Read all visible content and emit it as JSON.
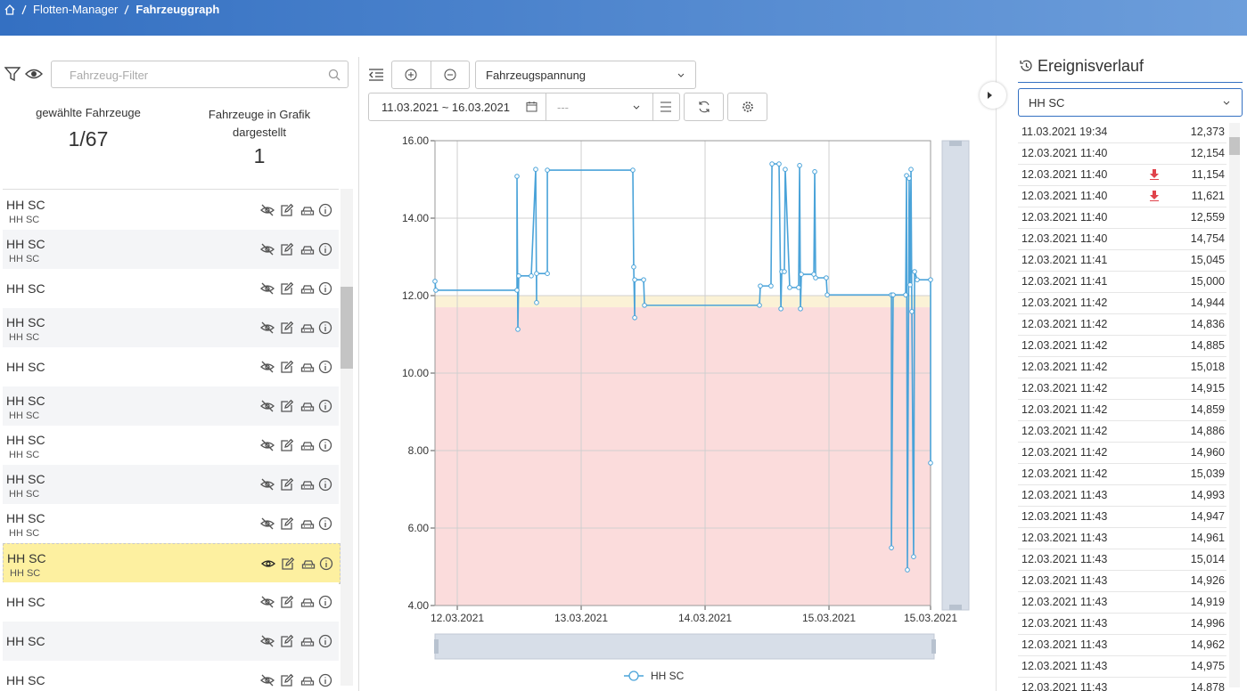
{
  "breadcrumb": [
    "Flotten-Manager",
    "Fahrzeuggraph"
  ],
  "filter": {
    "placeholder": "Fahrzeug-Filter"
  },
  "stats": [
    {
      "label": "gewählte Fahrzeuge",
      "value": "1/67"
    },
    {
      "label": "Fahrzeuge in Grafik dargestellt",
      "value": "1"
    }
  ],
  "vehicles": [
    {
      "name": "HH SC",
      "sub": "HH SC"
    },
    {
      "name": "HH SC",
      "sub": "HH SC"
    },
    {
      "name": "HH SC"
    },
    {
      "name": "HH SC",
      "sub": "HH SC"
    },
    {
      "name": "HH SC"
    },
    {
      "name": "HH SC",
      "sub": "HH SC"
    },
    {
      "name": "HH SC",
      "sub": "HH SC"
    },
    {
      "name": "HH SC",
      "sub": "HH SC"
    },
    {
      "name": "HH SC",
      "sub": "HH SC"
    },
    {
      "name": "HH SC",
      "sub": "HH SC",
      "selected": true
    },
    {
      "name": "HH SC"
    },
    {
      "name": "HH SC"
    },
    {
      "name": "HH SC"
    }
  ],
  "toolbar": {
    "measure": "Fahrzeugspannung",
    "date_range": "11.03.2021 ~ 16.03.2021",
    "option": "---"
  },
  "chart_data": {
    "type": "line",
    "x": [
      -0.18,
      -0.173,
      0.482,
      0.482,
      0.489,
      0.496,
      0.597,
      0.633,
      0.64,
      0.64,
      0.727,
      0.727,
      1.417,
      1.424,
      1.432,
      1.432,
      1.504,
      1.511,
      2.439,
      2.446,
      2.532,
      2.54,
      2.597,
      2.612,
      2.619,
      2.64,
      2.647,
      2.683,
      2.755,
      2.763,
      2.77,
      2.777,
      2.878,
      2.885,
      2.892,
      2.978,
      2.986,
      3.504,
      3.504,
      3.518,
      3.619,
      3.626,
      3.633,
      3.647,
      3.655,
      3.662,
      3.669,
      3.683,
      3.691,
      3.712,
      3.82,
      3.82
    ],
    "series": [
      {
        "name": "HH SC",
        "color": "#4aa3d9",
        "values": [
          12.37,
          12.14,
          12.14,
          15.08,
          11.13,
          12.51,
          12.51,
          15.26,
          11.82,
          12.57,
          12.57,
          15.24,
          15.24,
          12.74,
          11.43,
          12.41,
          12.41,
          11.75,
          11.75,
          12.25,
          12.25,
          15.4,
          15.4,
          11.66,
          12.62,
          12.62,
          15.26,
          12.21,
          12.21,
          15.36,
          11.66,
          12.55,
          12.55,
          15.2,
          12.46,
          12.46,
          12.02,
          12.02,
          5.49,
          12.02,
          12.02,
          15.1,
          4.92,
          15.03,
          12.28,
          15.26,
          11.59,
          5.26,
          12.62,
          12.41,
          12.41,
          7.68
        ]
      }
    ],
    "xlim": [
      -0.18,
      3.82
    ],
    "xticks": [
      {
        "value": 0,
        "label": "12.03.2021"
      },
      {
        "value": 1,
        "label": "13.03.2021"
      },
      {
        "value": 2,
        "label": "14.03.2021"
      },
      {
        "value": 3,
        "label": "15.03.2021"
      },
      {
        "value": 3.82,
        "label": "15.03.2021"
      }
    ],
    "ylim": [
      4,
      16
    ],
    "yticks": [
      {
        "value": 4,
        "label": "4.00"
      },
      {
        "value": 6,
        "label": "6.00"
      },
      {
        "value": 8,
        "label": "8.00"
      },
      {
        "value": 10,
        "label": "10.00"
      },
      {
        "value": 12,
        "label": "12.00"
      },
      {
        "value": 14,
        "label": "14.00"
      },
      {
        "value": 16,
        "label": "16.00"
      }
    ],
    "bands": [
      {
        "from": 4,
        "to": 11.7,
        "color": "#fbdcdc"
      },
      {
        "from": 11.7,
        "to": 12,
        "color": "#fbf2d6"
      }
    ],
    "grid": true,
    "legend": "bottom"
  },
  "events": {
    "title": "Ereignisverlauf",
    "vehicle": "HH SC",
    "rows": [
      {
        "time": "11.03.2021 19:34",
        "value": "12,373"
      },
      {
        "time": "12.03.2021 11:40",
        "value": "12,154"
      },
      {
        "time": "12.03.2021 11:40",
        "value": "11,154",
        "alert": true
      },
      {
        "time": "12.03.2021 11:40",
        "value": "11,621",
        "alert": true
      },
      {
        "time": "12.03.2021 11:40",
        "value": "12,559"
      },
      {
        "time": "12.03.2021 11:40",
        "value": "14,754"
      },
      {
        "time": "12.03.2021 11:41",
        "value": "15,045"
      },
      {
        "time": "12.03.2021 11:41",
        "value": "15,000"
      },
      {
        "time": "12.03.2021 11:42",
        "value": "14,944"
      },
      {
        "time": "12.03.2021 11:42",
        "value": "14,836"
      },
      {
        "time": "12.03.2021 11:42",
        "value": "14,885"
      },
      {
        "time": "12.03.2021 11:42",
        "value": "15,018"
      },
      {
        "time": "12.03.2021 11:42",
        "value": "14,915"
      },
      {
        "time": "12.03.2021 11:42",
        "value": "14,859"
      },
      {
        "time": "12.03.2021 11:42",
        "value": "14,886"
      },
      {
        "time": "12.03.2021 11:42",
        "value": "14,960"
      },
      {
        "time": "12.03.2021 11:42",
        "value": "15,039"
      },
      {
        "time": "12.03.2021 11:43",
        "value": "14,993"
      },
      {
        "time": "12.03.2021 11:43",
        "value": "14,947"
      },
      {
        "time": "12.03.2021 11:43",
        "value": "14,961"
      },
      {
        "time": "12.03.2021 11:43",
        "value": "15,014"
      },
      {
        "time": "12.03.2021 11:43",
        "value": "14,926"
      },
      {
        "time": "12.03.2021 11:43",
        "value": "14,919"
      },
      {
        "time": "12.03.2021 11:43",
        "value": "14,996"
      },
      {
        "time": "12.03.2021 11:43",
        "value": "14,962"
      },
      {
        "time": "12.03.2021 11:43",
        "value": "14,975"
      },
      {
        "time": "12.03.2021 11:43",
        "value": "14,878"
      }
    ]
  }
}
